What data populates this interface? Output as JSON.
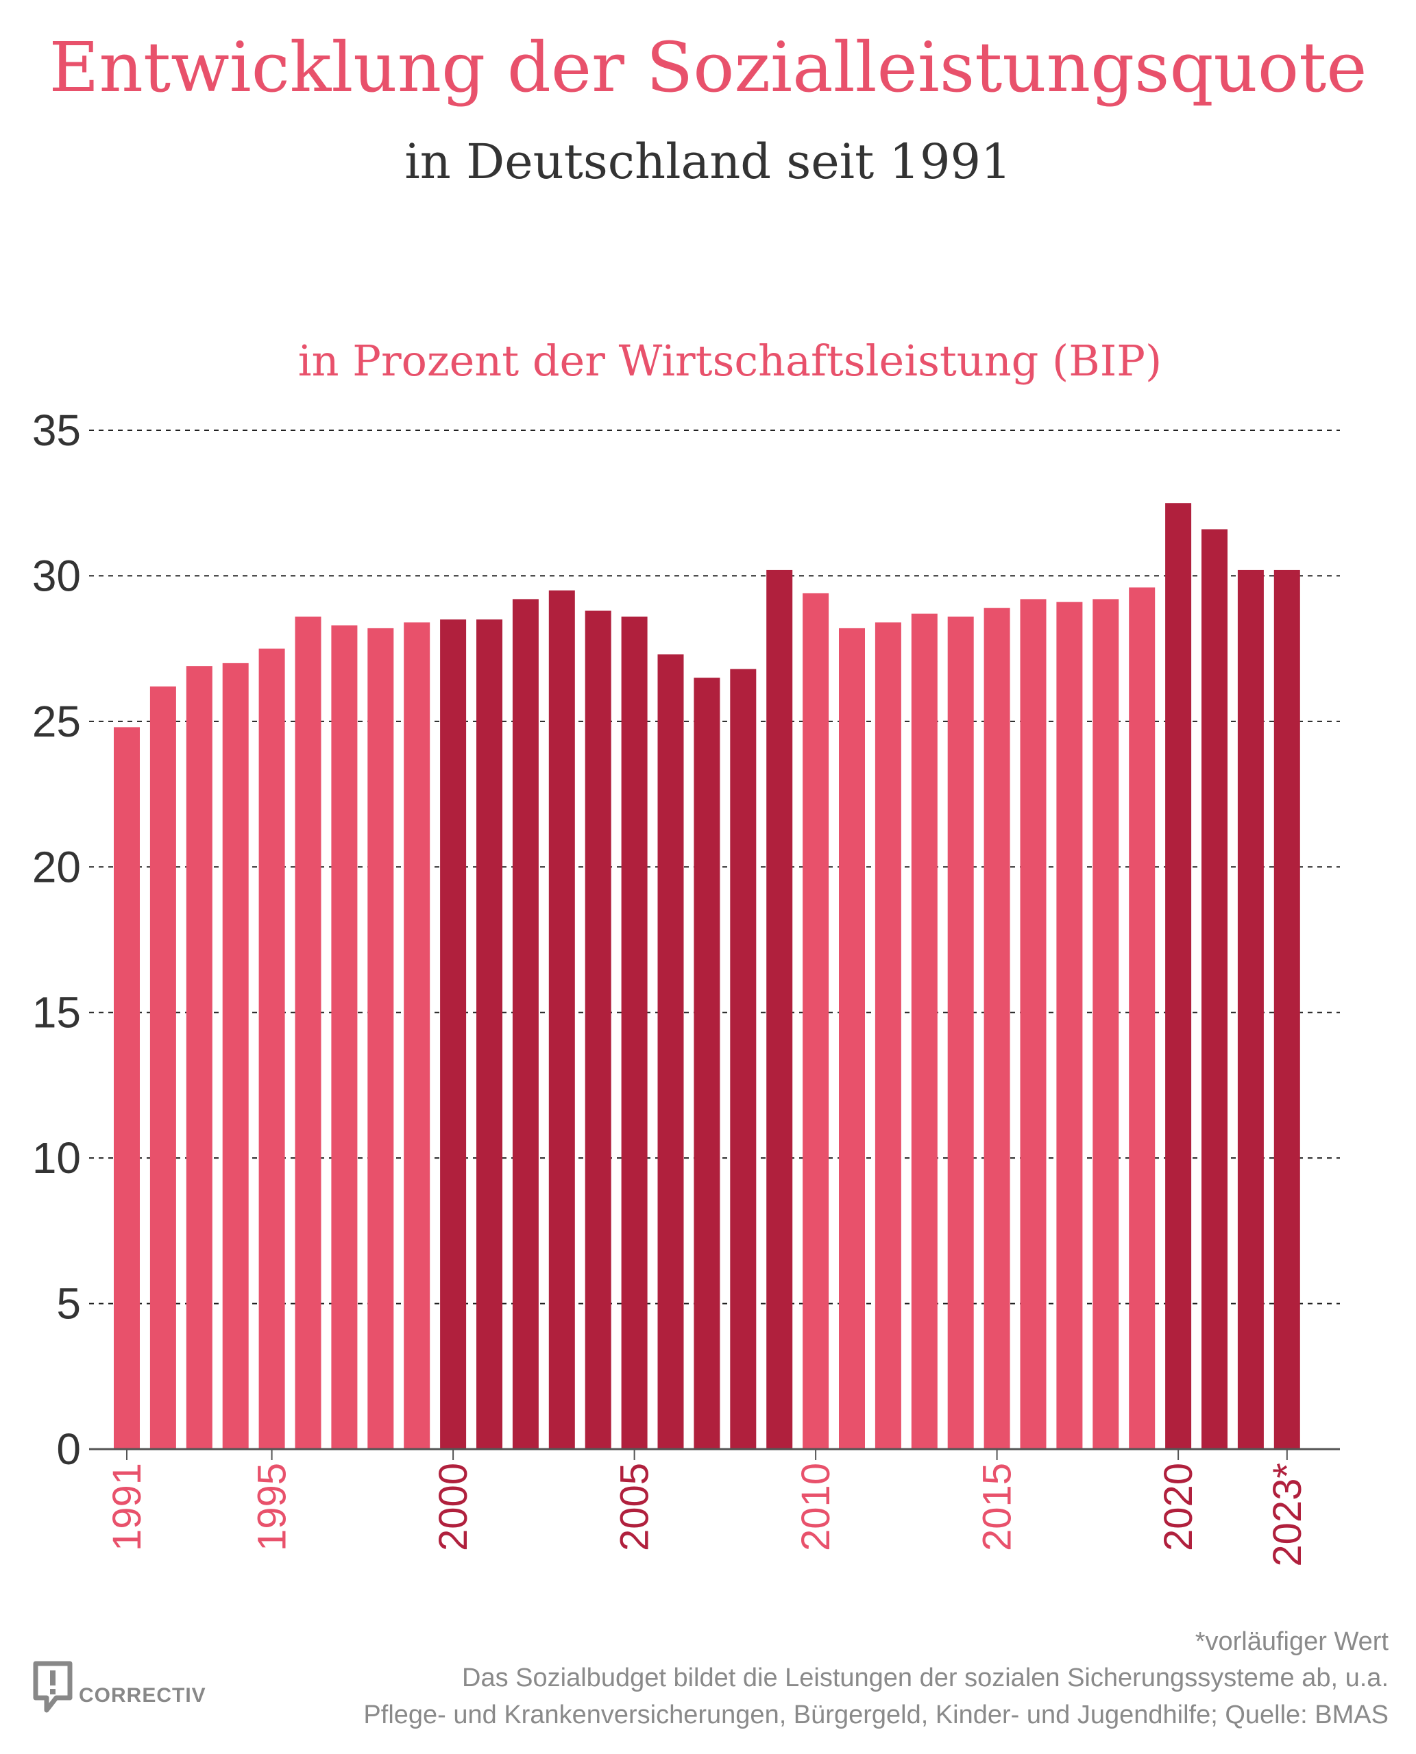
{
  "header": {
    "title": "Entwicklung der Sozialleistungsquote",
    "subtitle": "in Deutschland seit 1991"
  },
  "chart_data": {
    "type": "bar",
    "unit_label": "in Prozent der Wirtschaftsleistung (BIP)",
    "categories": [
      "1991",
      "1992",
      "1993",
      "1994",
      "1995",
      "1996",
      "1997",
      "1998",
      "1999",
      "2000",
      "2001",
      "2002",
      "2003",
      "2004",
      "2005",
      "2006",
      "2007",
      "2008",
      "2009",
      "2010",
      "2011",
      "2012",
      "2013",
      "2014",
      "2015",
      "2016",
      "2017",
      "2018",
      "2019",
      "2020",
      "2021",
      "2022",
      "2023*"
    ],
    "values": [
      24.8,
      26.2,
      26.9,
      27.0,
      27.5,
      28.6,
      28.3,
      28.2,
      28.4,
      28.5,
      28.5,
      29.2,
      29.5,
      28.8,
      28.6,
      27.3,
      26.5,
      26.8,
      30.2,
      29.4,
      28.2,
      28.4,
      28.7,
      28.6,
      28.9,
      29.2,
      29.1,
      29.2,
      29.6,
      32.5,
      31.6,
      30.2,
      30.2
    ],
    "visible_x_labels": [
      "1991",
      "1995",
      "2000",
      "2005",
      "2010",
      "2015",
      "2020",
      "2023*"
    ],
    "y_ticks": [
      0,
      5,
      10,
      15,
      20,
      25,
      30,
      35
    ],
    "ylim": [
      0,
      35
    ],
    "grid": "horizontal dashed",
    "colors": {
      "light": "#e8516b",
      "dark": "#b0203d",
      "title": "#e8516b",
      "subtitle": "#333333"
    },
    "bar_color_groups": {
      "light_years": [
        "1991-1999",
        "2010-2019"
      ],
      "dark_years": [
        "2000-2009",
        "2020-2023*"
      ]
    }
  },
  "footer": {
    "note": "*vorläufiger Wert",
    "line1": "Das Sozialbudget bildet die Leistungen der sozialen Sicherungssysteme ab, u.a.",
    "line2": "Pflege- und Krankenversicherungen, Bürgergeld, Kinder- und Jugendhilfe; Quelle: BMAS",
    "logo_text": "CORRECTIV"
  }
}
